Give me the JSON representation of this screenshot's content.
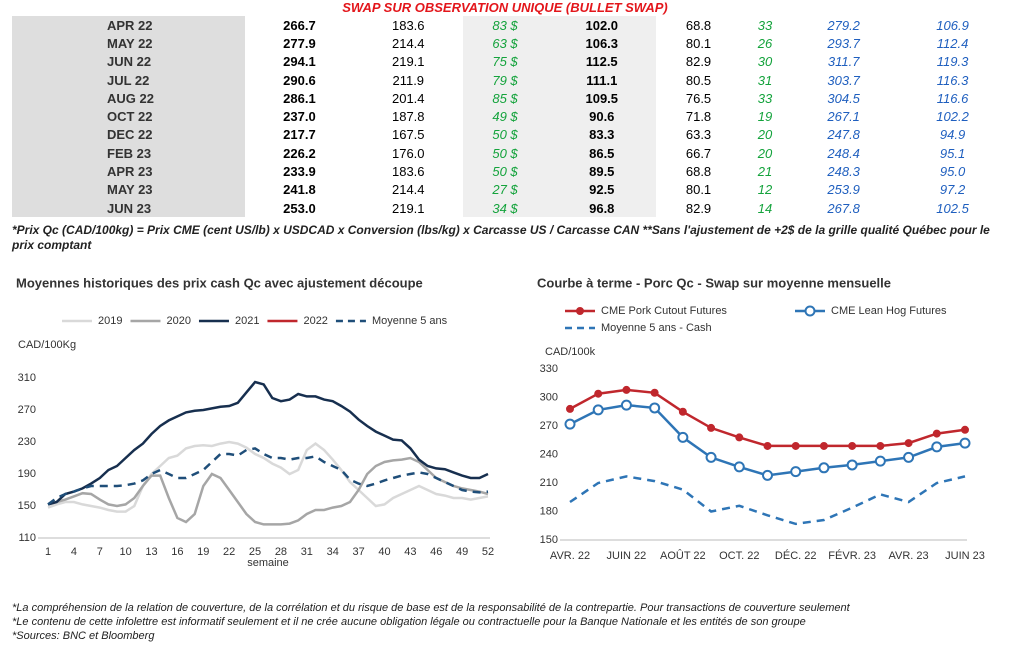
{
  "header": {
    "title": "SWAP SUR OBSERVATION UNIQUE (BULLET SWAP)"
  },
  "table": {
    "rows": [
      [
        "APR 22",
        "266.7",
        "183.6",
        "83 $",
        "102.0",
        "68.8",
        "33",
        "279.2",
        "106.9"
      ],
      [
        "MAY 22",
        "277.9",
        "214.4",
        "63 $",
        "106.3",
        "80.1",
        "26",
        "293.7",
        "112.4"
      ],
      [
        "JUN 22",
        "294.1",
        "219.1",
        "75 $",
        "112.5",
        "82.9",
        "30",
        "311.7",
        "119.3"
      ],
      [
        "JUL 22",
        "290.6",
        "211.9",
        "79 $",
        "111.1",
        "80.5",
        "31",
        "303.7",
        "116.3"
      ],
      [
        "AUG 22",
        "286.1",
        "201.4",
        "85 $",
        "109.5",
        "76.5",
        "33",
        "304.5",
        "116.6"
      ],
      [
        "OCT 22",
        "237.0",
        "187.8",
        "49 $",
        "90.6",
        "71.8",
        "19",
        "267.1",
        "102.2"
      ],
      [
        "DEC 22",
        "217.7",
        "167.5",
        "50 $",
        "83.3",
        "63.3",
        "20",
        "247.8",
        "94.9"
      ],
      [
        "FEB 23",
        "226.2",
        "176.0",
        "50 $",
        "86.5",
        "66.7",
        "20",
        "248.4",
        "95.1"
      ],
      [
        "APR 23",
        "233.9",
        "183.6",
        "50 $",
        "89.5",
        "68.8",
        "21",
        "248.3",
        "95.0"
      ],
      [
        "MAY 23",
        "241.8",
        "214.4",
        "27 $",
        "92.5",
        "80.1",
        "12",
        "253.9",
        "97.2"
      ],
      [
        "JUN 23",
        "253.0",
        "219.1",
        "34 $",
        "96.8",
        "82.9",
        "14",
        "267.8",
        "102.5"
      ]
    ]
  },
  "footnote": "*Prix Qc (CAD/100kg) = Prix CME (cent US/lb) x USDCAD x Conversion (lbs/kg) x Carcasse US / Carcasse CAN **Sans l'ajustement de +2$ de la grille qualité Québec pour le prix comptant",
  "chart_data": [
    {
      "type": "line",
      "title": "Moyennes historiques des prix cash Qc avec ajustement découpe",
      "x_label": "semaine",
      "y_label": "CAD/100Kg",
      "x": [
        1,
        2,
        3,
        4,
        5,
        6,
        7,
        8,
        9,
        10,
        11,
        12,
        13,
        14,
        15,
        16,
        17,
        18,
        19,
        20,
        21,
        22,
        23,
        24,
        25,
        26,
        27,
        28,
        29,
        30,
        31,
        32,
        33,
        34,
        35,
        36,
        37,
        38,
        39,
        40,
        41,
        42,
        43,
        44,
        45,
        46,
        47,
        48,
        49,
        50,
        51,
        52
      ],
      "xlim": [
        1,
        52
      ],
      "xticks": [
        1,
        4,
        7,
        10,
        13,
        16,
        19,
        22,
        25,
        28,
        31,
        34,
        37,
        40,
        43,
        46,
        49,
        52
      ],
      "ylim": [
        110,
        310
      ],
      "yticks": [
        110,
        150,
        190,
        230,
        270,
        310
      ],
      "legend": "top",
      "series": [
        {
          "name": "2019",
          "color": "#d9d9d9",
          "style": "solid",
          "values": [
            148,
            152,
            155,
            155,
            152,
            150,
            148,
            145,
            143,
            143,
            150,
            175,
            190,
            200,
            210,
            213,
            222,
            225,
            226,
            225,
            228,
            230,
            228,
            223,
            215,
            210,
            203,
            198,
            190,
            195,
            220,
            228,
            220,
            208,
            195,
            180,
            170,
            160,
            150,
            152,
            160,
            165,
            170,
            175,
            170,
            165,
            163,
            160,
            160,
            158,
            160,
            162
          ]
        },
        {
          "name": "2020",
          "color": "#a6a6a6",
          "style": "solid",
          "values": [
            152,
            155,
            158,
            162,
            166,
            165,
            158,
            152,
            150,
            152,
            160,
            175,
            188,
            188,
            160,
            135,
            130,
            140,
            175,
            190,
            185,
            170,
            155,
            140,
            130,
            127,
            127,
            127,
            128,
            132,
            140,
            145,
            145,
            148,
            150,
            155,
            170,
            190,
            200,
            205,
            207,
            208,
            210,
            205,
            195,
            185,
            180,
            175,
            172,
            170,
            168,
            165
          ]
        },
        {
          "name": "2021",
          "color": "#172f4f",
          "style": "solid",
          "values": [
            152,
            155,
            165,
            168,
            172,
            178,
            185,
            195,
            200,
            210,
            220,
            228,
            240,
            250,
            257,
            262,
            267,
            269,
            270,
            272,
            274,
            275,
            279,
            292,
            305,
            302,
            285,
            281,
            283,
            290,
            287,
            287,
            283,
            281,
            275,
            268,
            258,
            250,
            243,
            238,
            233,
            232,
            222,
            208,
            200,
            197,
            196,
            192,
            188,
            185,
            185,
            190
          ]
        },
        {
          "name": "2022",
          "color": "#c0272d",
          "style": "solid",
          "values": [
            null,
            null,
            null,
            null,
            null,
            null,
            null,
            null,
            null,
            null,
            null,
            null,
            null,
            null,
            null,
            null,
            null,
            null,
            null,
            null,
            null,
            null,
            null,
            null,
            null,
            null,
            null,
            null,
            null,
            null,
            null,
            null,
            null,
            null,
            null,
            null,
            null,
            null,
            null,
            null,
            null,
            null,
            null,
            null,
            null,
            null,
            null,
            null,
            null,
            null,
            null,
            null
          ]
        },
        {
          "name": "Moyenne 5 ans",
          "color": "#1f4e79",
          "style": "dashed",
          "values": [
            152,
            160,
            165,
            168,
            172,
            175,
            175,
            175,
            175,
            176,
            178,
            182,
            190,
            195,
            190,
            185,
            185,
            190,
            195,
            205,
            215,
            215,
            213,
            220,
            222,
            215,
            210,
            210,
            208,
            210,
            210,
            212,
            205,
            200,
            195,
            183,
            178,
            175,
            178,
            182,
            185,
            188,
            190,
            192,
            190,
            185,
            180,
            175,
            170,
            168,
            167,
            168
          ]
        }
      ]
    },
    {
      "type": "line",
      "title": "Courbe à terme - Porc Qc - Swap sur moyenne mensuelle",
      "y_label": "CAD/100k",
      "categories": [
        "AVR. 22",
        null,
        "JUIN 22",
        null,
        "AOÛT 22",
        null,
        "OCT. 22",
        null,
        "DÉC. 22",
        null,
        "FÉVR. 23",
        null,
        "AVR. 23",
        null,
        "JUIN 23"
      ],
      "ylim": [
        150,
        330
      ],
      "yticks": [
        150,
        180,
        210,
        240,
        270,
        300,
        330
      ],
      "legend": "top",
      "series": [
        {
          "name": "CME Pork Cutout Futures",
          "color": "#c0272d",
          "style": "solid",
          "marker": "filled",
          "values": [
            288,
            304,
            308,
            305,
            285,
            268,
            258,
            249,
            249,
            249,
            249,
            249,
            252,
            262,
            266
          ]
        },
        {
          "name": "CME Lean Hog Futures",
          "color": "#2e75b6",
          "style": "solid",
          "marker": "open",
          "values": [
            272,
            287,
            292,
            289,
            258,
            237,
            227,
            218,
            222,
            226,
            229,
            233,
            237,
            248,
            252
          ]
        },
        {
          "name": "Moyenne 5 ans - Cash",
          "color": "#2e75b6",
          "style": "dashed",
          "values": [
            190,
            210,
            217,
            212,
            203,
            180,
            186,
            176,
            167,
            171,
            184,
            198,
            190,
            210,
            217
          ]
        }
      ]
    }
  ],
  "notes": [
    "*La compréhension de la relation de couverture, de la corrélation et du risque de base est de la responsabilité de la contrepartie. Pour transactions de couverture seulement",
    "*Le contenu de cette infolettre est informatif seulement et il ne crée aucune obligation légale ou contractuelle pour la Banque Nationale et les entités de son groupe",
    "*Sources: BNC et Bloomberg"
  ]
}
